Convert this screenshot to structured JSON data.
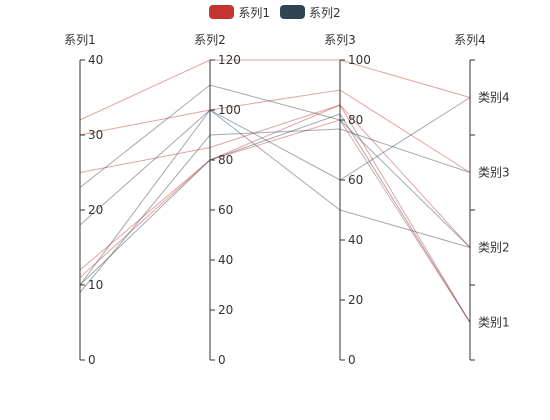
{
  "chart_data": {
    "type": "parallel",
    "title": "",
    "axes": [
      {
        "name": "系列1",
        "type": "value",
        "min": 0,
        "max": 40,
        "ticks": [
          0,
          10,
          20,
          30,
          40
        ]
      },
      {
        "name": "系列2",
        "type": "value",
        "min": 0,
        "max": 120,
        "ticks": [
          0,
          20,
          40,
          60,
          80,
          100,
          120
        ]
      },
      {
        "name": "系列3",
        "type": "value",
        "min": 0,
        "max": 100,
        "ticks": [
          0,
          20,
          40,
          60,
          80,
          100
        ]
      },
      {
        "name": "系列4",
        "type": "category",
        "categories": [
          "类别1",
          "类别2",
          "类别3",
          "类别4"
        ]
      }
    ],
    "series": [
      {
        "name": "系列1",
        "color": "#c23531",
        "lines": [
          [
            32,
            120,
            100,
            "类别4"
          ],
          [
            30,
            100,
            90,
            "类别3"
          ],
          [
            25,
            85,
            85,
            "类别2"
          ],
          [
            12,
            80,
            80,
            "类别1"
          ],
          [
            11,
            80,
            85,
            "类别1"
          ]
        ]
      },
      {
        "name": "系列2",
        "color": "#2f4554",
        "lines": [
          [
            23,
            110,
            80,
            "类别2"
          ],
          [
            18,
            100,
            50,
            "类别2"
          ],
          [
            10,
            100,
            60,
            "类别4"
          ],
          [
            9,
            90,
            77,
            "类别3"
          ],
          [
            10,
            80,
            82,
            "类别1"
          ]
        ]
      }
    ],
    "legend": {
      "position": "top-center",
      "items": [
        "系列1",
        "系列2"
      ]
    }
  }
}
